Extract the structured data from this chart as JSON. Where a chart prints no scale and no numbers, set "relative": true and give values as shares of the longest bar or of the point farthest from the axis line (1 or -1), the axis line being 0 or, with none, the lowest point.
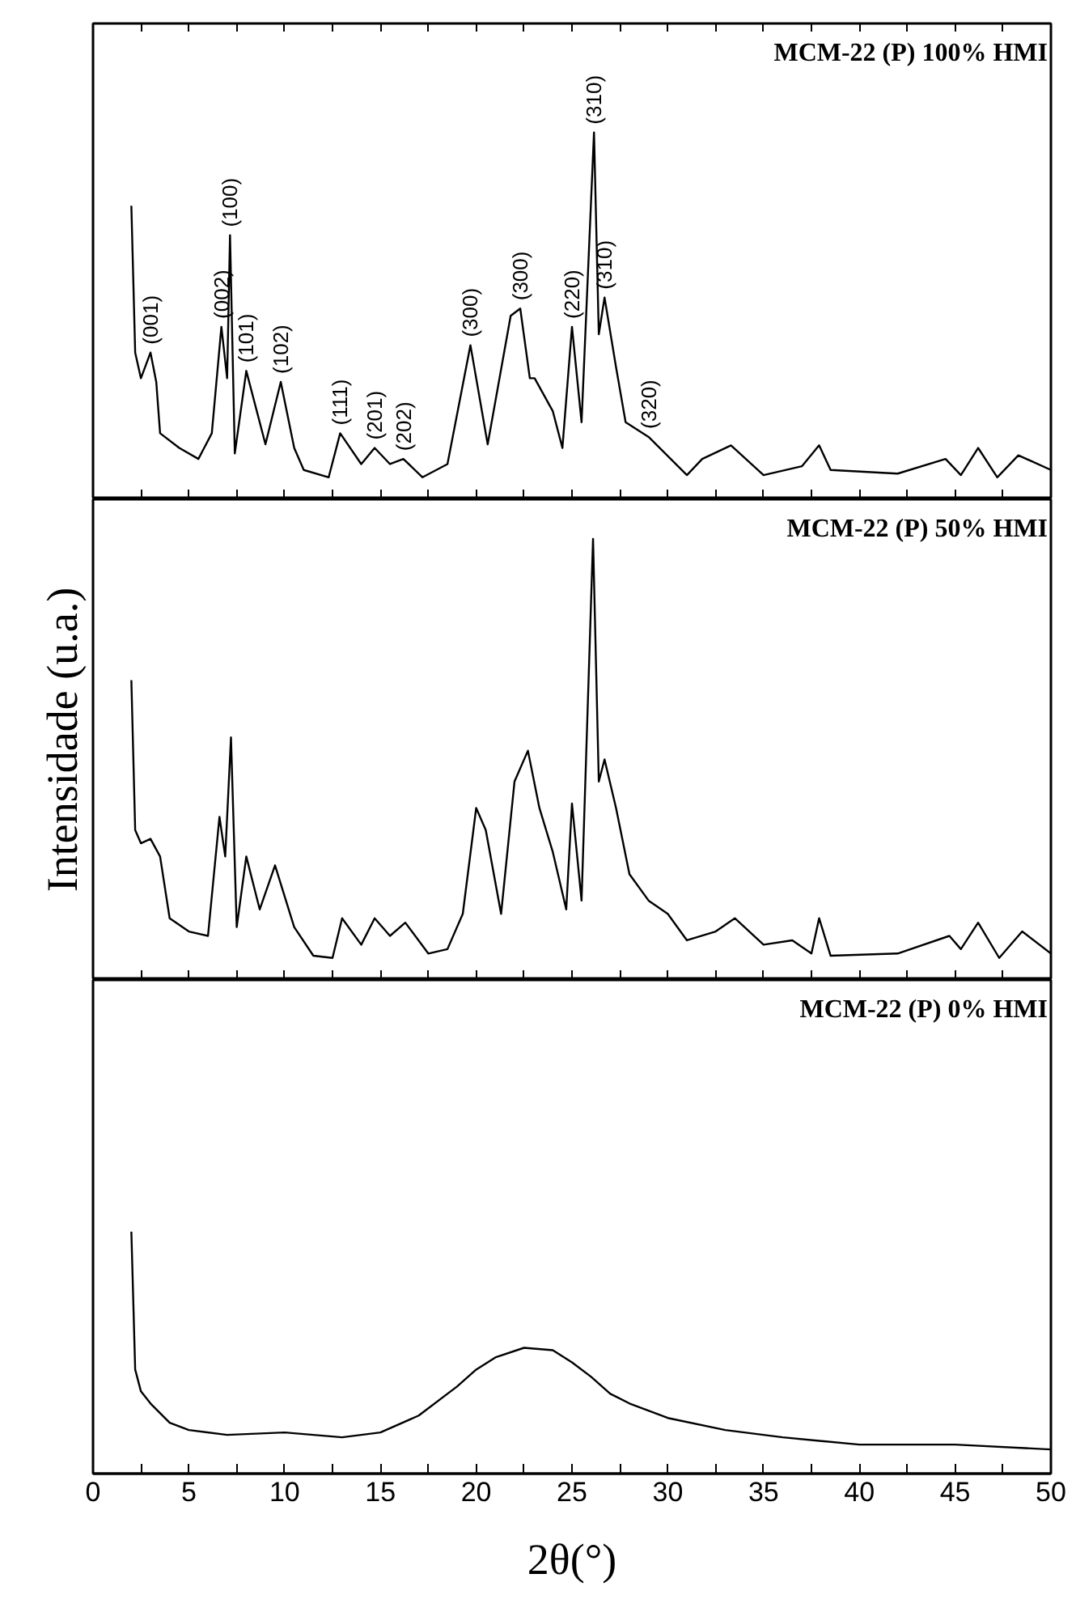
{
  "chart_data": [
    {
      "type": "line",
      "title": "MCM-22 (P) 100% HMI",
      "relative": true,
      "grid": false,
      "tick_labels": false,
      "line_style": "solid",
      "marker": "none",
      "xlim": [
        0,
        50
      ],
      "xticks": [
        0,
        {
          "value": 2.5,
          "label": null
        },
        5,
        {
          "value": 7.5,
          "label": null
        },
        10,
        {
          "value": 12.5,
          "label": null
        },
        15,
        {
          "value": 17.5,
          "label": null
        },
        20,
        {
          "value": 22.5,
          "label": null
        },
        25,
        {
          "value": 27.5,
          "label": null
        },
        30,
        {
          "value": 32.5,
          "label": null
        },
        35,
        {
          "value": 37.5,
          "label": null
        },
        40,
        {
          "value": 42.5,
          "label": null
        },
        45,
        {
          "value": 47.5,
          "label": null
        },
        50
      ],
      "x": [
        2.0,
        2.2,
        2.5,
        3.0,
        3.3,
        3.5,
        4.5,
        5.5,
        6.2,
        6.7,
        7.0,
        7.15,
        7.4,
        8.0,
        9.0,
        9.8,
        10.5,
        11.0,
        12.3,
        12.9,
        14.0,
        14.7,
        15.5,
        16.2,
        17.2,
        18.5,
        19.7,
        20.6,
        21.8,
        22.3,
        22.8,
        23.05,
        24.0,
        24.5,
        25.0,
        25.5,
        26.15,
        26.4,
        26.7,
        27.3,
        27.8,
        29.0,
        31.0,
        31.8,
        33.3,
        35.0,
        37.0,
        37.9,
        38.5,
        42.0,
        44.5,
        45.3,
        46.2,
        47.2,
        48.3,
        50.0
      ],
      "series": [
        {
          "color": "#000000",
          "values": [
            0.8,
            0.4,
            0.33,
            0.4,
            0.32,
            0.18,
            0.14,
            0.11,
            0.18,
            0.47,
            0.33,
            0.72,
            0.125,
            0.35,
            0.15,
            0.32,
            0.14,
            0.08,
            0.06,
            0.18,
            0.096,
            0.14,
            0.096,
            0.11,
            0.06,
            0.096,
            0.42,
            0.15,
            0.5,
            0.52,
            0.33,
            0.33,
            0.24,
            0.14,
            0.47,
            0.21,
            1.0,
            0.45,
            0.55,
            0.36,
            0.21,
            0.17,
            0.066,
            0.11,
            0.147,
            0.066,
            0.09,
            0.147,
            0.08,
            0.07,
            0.11,
            0.066,
            0.14,
            0.06,
            0.12,
            0.08
          ]
        }
      ],
      "annotations": [
        {
          "text": "(001)",
          "x": 3.0,
          "y": 0.4
        },
        {
          "text": "(002)",
          "x": 6.7,
          "y": 0.47
        },
        {
          "text": "(100)",
          "x": 7.15,
          "y": 0.72
        },
        {
          "text": "(101)",
          "x": 8.0,
          "y": 0.35
        },
        {
          "text": "(102)",
          "x": 9.8,
          "y": 0.32
        },
        {
          "text": "(111)",
          "x": 12.9,
          "y": 0.18
        },
        {
          "text": "(201)",
          "x": 14.7,
          "y": 0.14
        },
        {
          "text": "(202)",
          "x": 16.2,
          "y": 0.11
        },
        {
          "text": "(300)",
          "x": 19.7,
          "y": 0.42
        },
        {
          "text": "(300)",
          "x": 22.3,
          "y": 0.52
        },
        {
          "text": "(220)",
          "x": 25.0,
          "y": 0.47
        },
        {
          "text": "(310)",
          "x": 26.15,
          "y": 1.0
        },
        {
          "text": "(310)",
          "x": 26.7,
          "y": 0.55
        },
        {
          "text": "(320)",
          "x": 29.0,
          "y": 0.17
        }
      ]
    },
    {
      "type": "line",
      "title": "MCM-22 (P) 50% HMI",
      "ylabel": "Intensidade (u.a.)",
      "relative": true,
      "grid": false,
      "tick_labels": false,
      "line_style": "solid",
      "marker": "none",
      "xlim": [
        0,
        50
      ],
      "xticks": [
        0,
        {
          "value": 2.5,
          "label": null
        },
        5,
        {
          "value": 7.5,
          "label": null
        },
        10,
        {
          "value": 12.5,
          "label": null
        },
        15,
        {
          "value": 17.5,
          "label": null
        },
        20,
        {
          "value": 22.5,
          "label": null
        },
        25,
        {
          "value": 27.5,
          "label": null
        },
        30,
        {
          "value": 32.5,
          "label": null
        },
        35,
        {
          "value": 37.5,
          "label": null
        },
        40,
        {
          "value": 42.5,
          "label": null
        },
        45,
        {
          "value": 47.5,
          "label": null
        },
        50
      ],
      "x": [
        2.0,
        2.2,
        2.5,
        3.0,
        3.5,
        4.0,
        5.0,
        6.0,
        6.6,
        6.9,
        7.2,
        7.5,
        8.0,
        8.7,
        9.5,
        10.5,
        11.5,
        12.5,
        13.0,
        14.0,
        14.7,
        15.5,
        16.3,
        17.5,
        18.5,
        19.3,
        20.0,
        20.5,
        21.3,
        22.0,
        22.7,
        23.3,
        24.0,
        24.7,
        25.0,
        25.5,
        26.1,
        26.4,
        26.7,
        27.3,
        28.0,
        29.0,
        30.0,
        31.0,
        32.5,
        33.5,
        35.0,
        36.5,
        37.5,
        37.9,
        38.5,
        42.0,
        44.7,
        45.3,
        46.2,
        47.3,
        48.5,
        50.0
      ],
      "series": [
        {
          "color": "#000000",
          "values": [
            0.68,
            0.34,
            0.31,
            0.32,
            0.28,
            0.14,
            0.11,
            0.1,
            0.37,
            0.28,
            0.55,
            0.12,
            0.28,
            0.16,
            0.26,
            0.12,
            0.055,
            0.05,
            0.14,
            0.08,
            0.14,
            0.1,
            0.13,
            0.06,
            0.07,
            0.15,
            0.39,
            0.34,
            0.15,
            0.45,
            0.52,
            0.39,
            0.29,
            0.16,
            0.4,
            0.18,
            1.0,
            0.45,
            0.5,
            0.39,
            0.24,
            0.18,
            0.15,
            0.09,
            0.11,
            0.14,
            0.08,
            0.09,
            0.06,
            0.14,
            0.055,
            0.06,
            0.1,
            0.07,
            0.13,
            0.05,
            0.11,
            0.06
          ]
        }
      ]
    },
    {
      "type": "line",
      "title": "MCM-22 (P) 0% HMI",
      "xlabel": "2θ(°)",
      "relative": true,
      "grid": false,
      "tick_labels": "x",
      "line_style": "solid",
      "marker": "none",
      "xlim": [
        0,
        50
      ],
      "xticks": [
        0,
        {
          "value": 2.5,
          "label": null
        },
        5,
        {
          "value": 7.5,
          "label": null
        },
        10,
        {
          "value": 12.5,
          "label": null
        },
        15,
        {
          "value": 17.5,
          "label": null
        },
        20,
        {
          "value": 22.5,
          "label": null
        },
        25,
        {
          "value": 27.5,
          "label": null
        },
        30,
        {
          "value": 32.5,
          "label": null
        },
        35,
        {
          "value": 37.5,
          "label": null
        },
        40,
        {
          "value": 42.5,
          "label": null
        },
        45,
        {
          "value": 47.5,
          "label": null
        },
        50
      ],
      "x": [
        2.0,
        2.2,
        2.5,
        3.0,
        4.0,
        5.0,
        7.0,
        10.0,
        13.0,
        15.0,
        17.0,
        19.0,
        20.0,
        21.0,
        22.5,
        24.0,
        25.0,
        26.0,
        27.0,
        28.0,
        30.0,
        33.0,
        36.0,
        40.0,
        45.0,
        50.0
      ],
      "series": [
        {
          "color": "#000000",
          "values": [
            1.0,
            0.43,
            0.34,
            0.29,
            0.21,
            0.18,
            0.16,
            0.17,
            0.15,
            0.17,
            0.24,
            0.36,
            0.43,
            0.48,
            0.52,
            0.51,
            0.46,
            0.4,
            0.33,
            0.29,
            0.23,
            0.18,
            0.15,
            0.12,
            0.12,
            0.1
          ]
        }
      ]
    }
  ]
}
